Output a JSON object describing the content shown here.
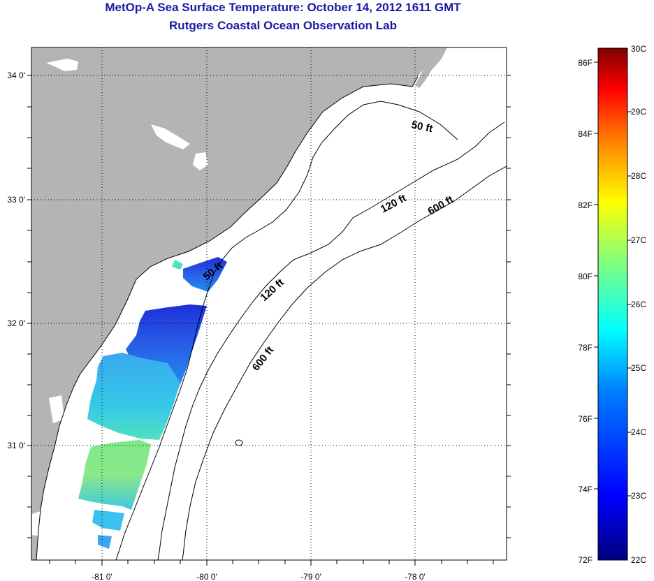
{
  "title": {
    "line1": "MetOp-A Sea Surface Temperature:  October 14, 2012 1611 GMT",
    "line2": "Rutgers Coastal Ocean Observation Lab"
  },
  "map": {
    "lon_ticks": [
      "-81 0'",
      "-80 0'",
      "-79 0'",
      "-78 0'"
    ],
    "lat_ticks": [
      "34 0'",
      "33 0'",
      "32 0'",
      "31 0'"
    ],
    "isobaths": [
      "50 ft",
      "120 ft",
      "600 ft",
      "50 ft",
      "120 ft",
      "600 ft"
    ],
    "colors": {
      "land": "#b4b4b4",
      "no_data": "#ffffff",
      "contour": "#000000"
    }
  },
  "colorbar": {
    "fahrenheit": [
      "86F",
      "84F",
      "82F",
      "80F",
      "78F",
      "76F",
      "74F",
      "72F"
    ],
    "celsius": [
      "30C",
      "29C",
      "28C",
      "27C",
      "26C",
      "25C",
      "24C",
      "23C",
      "22C"
    ],
    "range_c": [
      22,
      30
    ],
    "stops": [
      "#00007f",
      "#0000ff",
      "#007fff",
      "#00ffff",
      "#7fff7f",
      "#ffff00",
      "#ff7f00",
      "#ff0000",
      "#7f0000"
    ]
  }
}
